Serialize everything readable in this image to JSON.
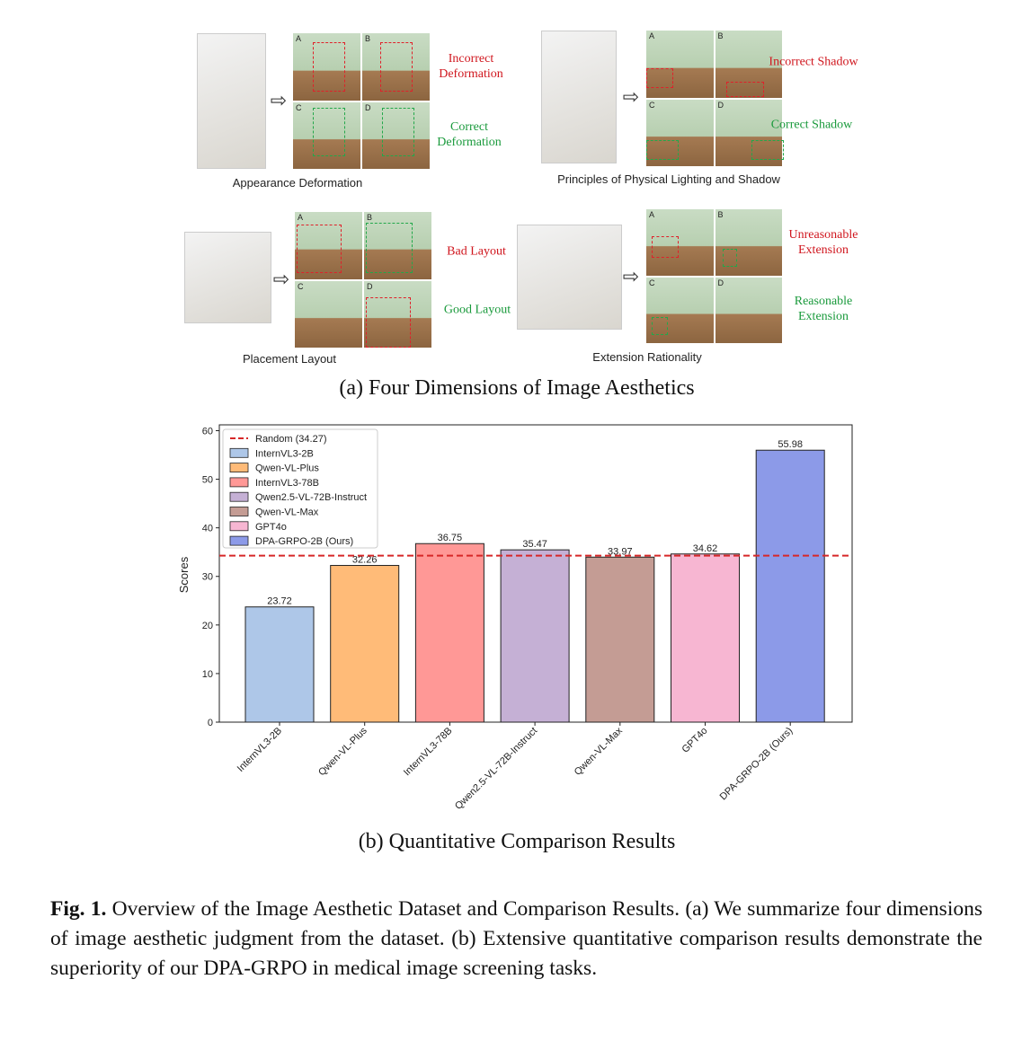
{
  "panel_a": {
    "caption": "(a) Four Dimensions of Image Aesthetics",
    "panel_letters": [
      "A",
      "B",
      "C",
      "D"
    ],
    "dimensions": [
      {
        "title": "Appearance Deformation",
        "bad": "Incorrect Deformation",
        "good": "Correct Deformation"
      },
      {
        "title": "Principles of Physical Lighting and Shadow",
        "bad": "Incorrect Shadow",
        "good": "Correct Shadow"
      },
      {
        "title": "Placement Layout",
        "bad": "Bad Layout",
        "good": "Good Layout"
      },
      {
        "title": "Extension Rationality",
        "bad": "Unreasonable Extension",
        "good": "Reasonable Extension"
      }
    ]
  },
  "chart_data": {
    "type": "bar",
    "caption": "(b) Quantitative Comparison Results",
    "ylabel": "Scores",
    "categories": [
      "InternVL3-2B",
      "Qwen-VL-Plus",
      "InternVL3-78B",
      "Qwen2.5-VL-72B-Instruct",
      "Qwen-VL-Max",
      "GPT4o",
      "DPA-GRPO-2B (Ours)"
    ],
    "values": [
      23.72,
      32.26,
      36.75,
      35.47,
      33.97,
      34.62,
      55.98
    ],
    "colors": [
      "#aec7e8",
      "#ffbb78",
      "#ff9896",
      "#c5b0d5",
      "#c49c94",
      "#f7b6d2",
      "#8c9ae8"
    ],
    "reference_line": {
      "name": "Random (34.27)",
      "value": 34.27,
      "color": "#d62728"
    },
    "ylim": [
      0,
      61.2
    ],
    "yticks": [
      0,
      10,
      20,
      30,
      40,
      50,
      60
    ],
    "legend": "upper left"
  },
  "caption": {
    "label": "Fig. 1.",
    "text": "Overview of the Image Aesthetic Dataset and Comparison Results. (a) We summarize four dimensions of image aesthetic judgment from the dataset. (b) Extensive quantitative comparison results demonstrate the superiority of our DPA-GRPO in medical image screening tasks."
  }
}
